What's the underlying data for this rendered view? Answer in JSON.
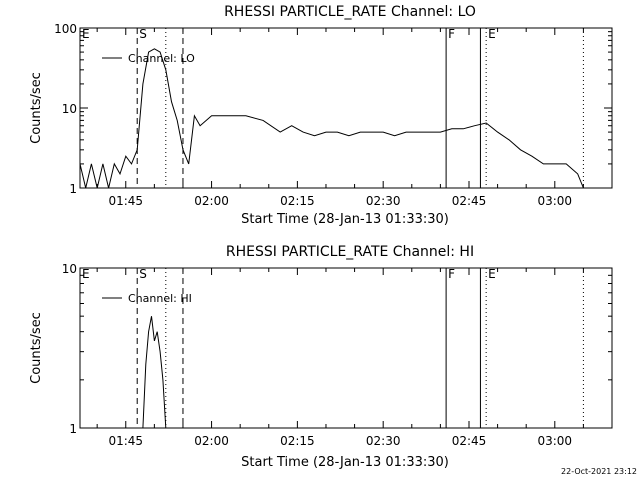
{
  "footer_timestamp": "22-Oct-2021 23:12",
  "colors": {
    "foreground": "#000000",
    "background": "#ffffff"
  },
  "chart_data": [
    {
      "type": "line",
      "title": "RHESSI PARTICLE_RATE Channel: LO",
      "xlabel": "Start Time (28-Jan-13 01:33:30)",
      "ylabel": "Counts/sec",
      "y_scale": "log",
      "ylim": [
        1,
        100
      ],
      "xlim": [
        "01:37",
        "03:10"
      ],
      "x_ticks": [
        "01:45",
        "02:00",
        "02:15",
        "02:30",
        "02:45",
        "03:00"
      ],
      "y_ticks": [
        "1",
        "10",
        "100"
      ],
      "legend": {
        "placement": "top-left",
        "entries": [
          "Channel: LO"
        ]
      },
      "markers": [
        {
          "label": "E",
          "time": "01:37",
          "style": "none"
        },
        {
          "label": "S",
          "time": "01:47",
          "style": "dashed"
        },
        {
          "label": "",
          "time": "01:52",
          "style": "dotted"
        },
        {
          "label": "",
          "time": "01:55",
          "style": "dashed"
        },
        {
          "label": "F",
          "time": "02:41",
          "style": "solid"
        },
        {
          "label": "",
          "time": "02:47",
          "style": "solid"
        },
        {
          "label": "E",
          "time": "02:48",
          "style": "dotted"
        },
        {
          "label": "",
          "time": "03:05",
          "style": "dotted"
        }
      ],
      "series": [
        {
          "name": "Channel: LO",
          "x": [
            "01:37",
            "01:38",
            "01:39",
            "01:40",
            "01:41",
            "01:42",
            "01:43",
            "01:44",
            "01:45",
            "01:46",
            "01:47",
            "01:48",
            "01:49",
            "01:50",
            "01:51",
            "01:52",
            "01:53",
            "01:54",
            "01:55",
            "01:56",
            "01:57",
            "01:58",
            "02:00",
            "02:03",
            "02:06",
            "02:09",
            "02:12",
            "02:14",
            "02:16",
            "02:18",
            "02:20",
            "02:22",
            "02:24",
            "02:26",
            "02:28",
            "02:30",
            "02:32",
            "02:34",
            "02:36",
            "02:38",
            "02:40",
            "02:42",
            "02:44",
            "02:46",
            "02:48",
            "02:50",
            "02:52",
            "02:54",
            "02:56",
            "02:58",
            "03:00",
            "03:02",
            "03:04",
            "03:05"
          ],
          "values": [
            2,
            1,
            2,
            1,
            2,
            1,
            2,
            1.5,
            2.5,
            2,
            3,
            20,
            50,
            55,
            50,
            30,
            12,
            7,
            3,
            2,
            8,
            6,
            8,
            8,
            8,
            7,
            5,
            6,
            5,
            4.5,
            5,
            5,
            4.5,
            5,
            5,
            5,
            4.5,
            5,
            5,
            5,
            5,
            5.5,
            5.5,
            6,
            6.5,
            5,
            4,
            3,
            2.5,
            2,
            2,
            2,
            1.5,
            1
          ]
        }
      ]
    },
    {
      "type": "line",
      "title": "RHESSI PARTICLE_RATE Channel: HI",
      "xlabel": "Start Time (28-Jan-13 01:33:30)",
      "ylabel": "Counts/sec",
      "y_scale": "log",
      "ylim": [
        1,
        10
      ],
      "xlim": [
        "01:37",
        "03:10"
      ],
      "x_ticks": [
        "01:45",
        "02:00",
        "02:15",
        "02:30",
        "02:45",
        "03:00"
      ],
      "y_ticks": [
        "1",
        "10"
      ],
      "legend": {
        "placement": "top-left",
        "entries": [
          "Channel: HI"
        ]
      },
      "markers": [
        {
          "label": "E",
          "time": "01:37",
          "style": "none"
        },
        {
          "label": "S",
          "time": "01:47",
          "style": "dashed"
        },
        {
          "label": "",
          "time": "01:52",
          "style": "dotted"
        },
        {
          "label": "",
          "time": "01:55",
          "style": "dashed"
        },
        {
          "label": "F",
          "time": "02:41",
          "style": "solid"
        },
        {
          "label": "",
          "time": "02:47",
          "style": "solid"
        },
        {
          "label": "E",
          "time": "02:48",
          "style": "dotted"
        },
        {
          "label": "",
          "time": "03:05",
          "style": "dotted"
        }
      ],
      "series": [
        {
          "name": "Channel: HI",
          "x": [
            "01:48",
            "01:48.5",
            "01:49",
            "01:49.5",
            "01:50",
            "01:50.5",
            "01:51",
            "01:51.5",
            "01:52"
          ],
          "values": [
            1,
            2.5,
            4,
            5,
            3.5,
            4,
            3,
            2,
            1
          ]
        }
      ]
    }
  ]
}
